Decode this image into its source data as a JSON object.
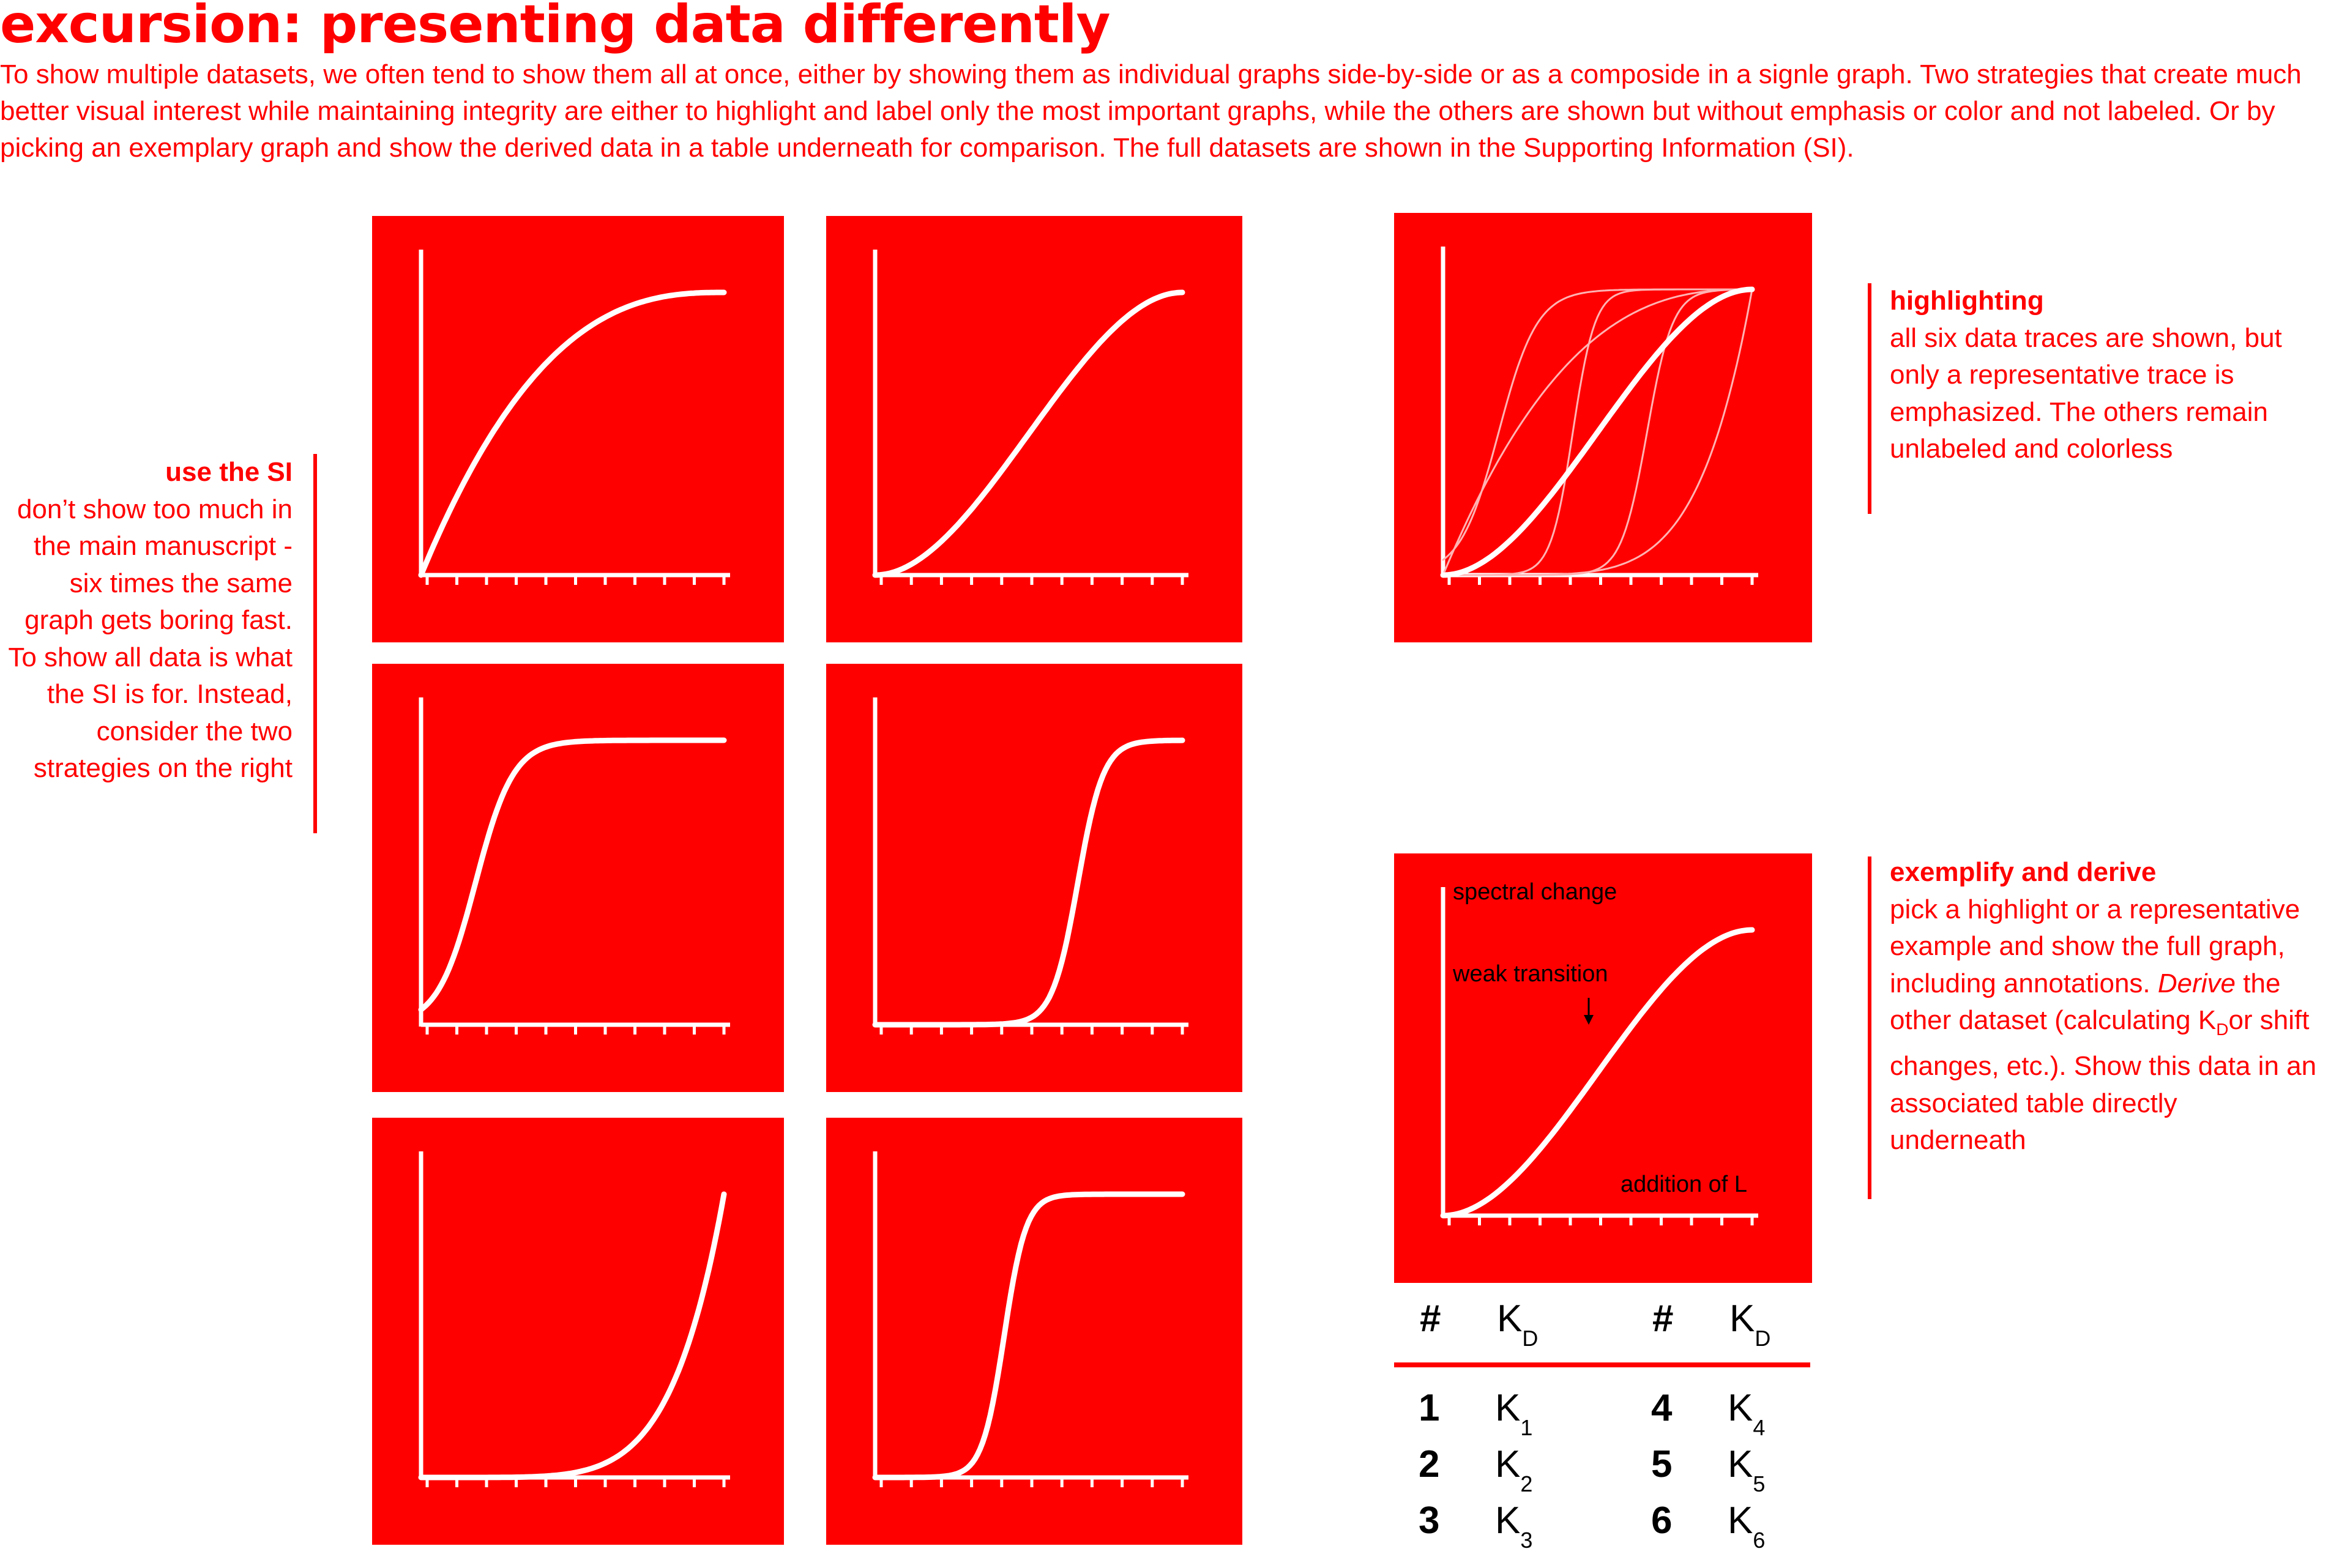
{
  "title": "excursion: presenting data differently",
  "intro": "To show multiple datasets, we often tend to show them all at once, either by showing them as individual graphs side-by-side or as a composide in a signle graph. Two strategies that create much better visual interest while maintaining integrity are either to highlight and label only the most important graphs, while the others are shown but without emphasis or color and not labeled. Or by picking an exemplary graph and show the derived data in a table underneath for comparison. The full datasets are shown in the Supporting Information (SI).",
  "notes": {
    "si": {
      "heading": "use the SI",
      "body": "don’t show too much in the main manuscript - six times the same graph gets boring fast. To show all data is what the SI is for. Instead, consider the two strategies on the right"
    },
    "highlighting": {
      "heading": "highlighting",
      "body": "all six data traces are shown, but only a representative trace is emphasized. The others remain unlabeled and colorless"
    },
    "exemplify": {
      "heading": "exemplify and derive",
      "body_pre": "pick a highlight or a representative example and show the full graph, including annotations. ",
      "body_em": "Derive",
      "body_mid": " the other dataset (calculating K",
      "body_sub": "D",
      "body_post": "or shift changes, etc.). Show this data in an associated table directly underneath"
    }
  },
  "example_chart": {
    "ylabel": "spectral change",
    "xlabel": "addition of L",
    "annotation": "weak transition"
  },
  "table": {
    "headers": [
      {
        "hash": "#",
        "k": "K",
        "sub": "D"
      },
      {
        "hash": "#",
        "k": "K",
        "sub": "D"
      }
    ],
    "rows": [
      {
        "n1": "1",
        "k1": "K",
        "s1": "1",
        "n2": "4",
        "k2": "K",
        "s2": "4"
      },
      {
        "n1": "2",
        "k1": "K",
        "s1": "2",
        "n2": "5",
        "k2": "K",
        "s2": "5"
      },
      {
        "n1": "3",
        "k1": "K",
        "s1": "3",
        "n2": "6",
        "k2": "K",
        "s2": "6"
      }
    ]
  },
  "colors": {
    "accent": "#ff0000",
    "trace": "#ffffff",
    "text": "#000000"
  },
  "traces": [
    "saturating",
    "sigmoid",
    "steep-sigmoid-early",
    "steep-sigmoid-late",
    "exponential",
    "steep-sigmoid-mid"
  ]
}
